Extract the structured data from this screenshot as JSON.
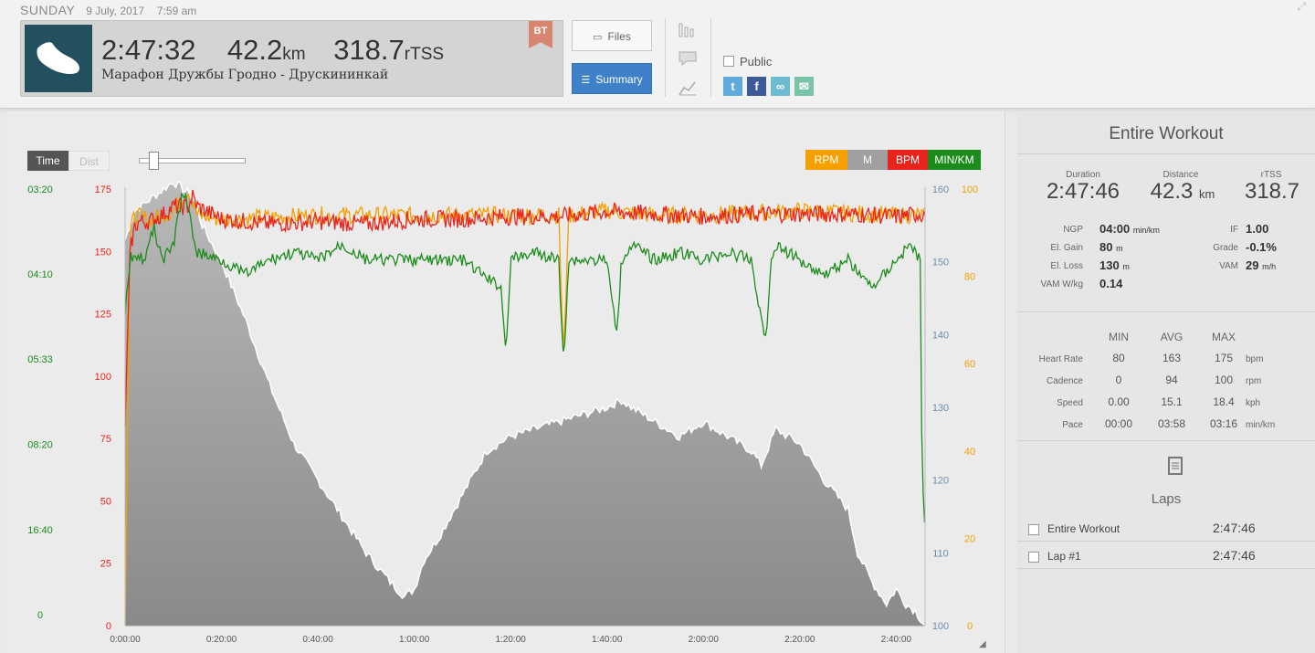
{
  "header": {
    "day": "SUNDAY",
    "date": "9 July, 2017",
    "time": "7:59 am",
    "duration": "2:47:32",
    "distance_value": "42.2",
    "distance_unit": "km",
    "tss_value": "318.7",
    "tss_unit": "rTSS",
    "workout_name": "Марафон Дружбы Гродно - Друскининкай",
    "badge": "BT"
  },
  "buttons": {
    "files": "Files",
    "summary": "Summary"
  },
  "public_label": "Public",
  "chart_toolbar": {
    "time": "Time",
    "dist": "Dist",
    "slider_level": 0.1
  },
  "legend": [
    {
      "label": "RPM",
      "color": "#f5a000"
    },
    {
      "label": "M",
      "color": "#a0a0a0"
    },
    {
      "label": "BPM",
      "color": "#e8241c"
    },
    {
      "label": "MIN/KM",
      "color": "#1b8c1b"
    }
  ],
  "chart_data": {
    "type": "line",
    "x_axis": {
      "unit": "elapsed time",
      "range": [
        "0:00:00",
        "2:46:00"
      ],
      "ticks": [
        "0:00:00",
        "0:20:00",
        "0:40:00",
        "1:00:00",
        "1:20:00",
        "1:40:00",
        "2:00:00",
        "2:20:00",
        "2:40:00"
      ]
    },
    "axes": {
      "bpm": {
        "color": "#e8241c",
        "range": [
          0,
          175
        ],
        "ticks": [
          "175",
          "150",
          "125",
          "100",
          "75",
          "50",
          "25",
          "0"
        ]
      },
      "pace": {
        "color": "#1b8c1b",
        "ticks": [
          "03:20",
          "04:10",
          "05:33",
          "08:20",
          "16:40",
          "0"
        ]
      },
      "elevation": {
        "color": "#6a8fb0",
        "range": [
          100,
          160
        ],
        "ticks": [
          "160",
          "150",
          "140",
          "130",
          "120",
          "110",
          "100"
        ]
      },
      "cadence": {
        "color": "#f5a000",
        "range": [
          0,
          100
        ],
        "ticks": [
          "100",
          "80",
          "60",
          "40",
          "20",
          "0"
        ]
      }
    },
    "series": [
      {
        "name": "BPM",
        "unit": "bpm",
        "x_min": [
          0,
          1,
          2,
          3,
          5,
          8,
          10,
          13,
          14,
          15,
          20,
          30,
          40,
          50,
          60,
          70,
          80,
          90,
          100,
          110,
          120,
          130,
          140,
          150,
          160,
          165,
          166
        ],
        "y": [
          80,
          150,
          160,
          162,
          162,
          165,
          168,
          168,
          172,
          168,
          163,
          161,
          162,
          161,
          163,
          163,
          164,
          164,
          166,
          165,
          164,
          165,
          165,
          165,
          164,
          165,
          165
        ]
      },
      {
        "name": "RPM",
        "unit": "rpm",
        "x_min": [
          0,
          1,
          2,
          5,
          10,
          13,
          15,
          20,
          40,
          60,
          80,
          90,
          91,
          92,
          100,
          110,
          120,
          140,
          160,
          166
        ],
        "y": [
          0,
          90,
          94,
          93,
          95,
          100,
          94,
          93,
          94,
          94,
          94,
          94,
          60,
          94,
          95,
          94,
          94,
          95,
          94,
          94
        ]
      },
      {
        "name": "MIN/KM",
        "unit": "min/km",
        "x_min": [
          0,
          1,
          2,
          4,
          6,
          8,
          10,
          12,
          13,
          15,
          20,
          25,
          30,
          35,
          40,
          45,
          50,
          60,
          70,
          78,
          79,
          80,
          85,
          90,
          91,
          92,
          100,
          102,
          103,
          105,
          110,
          115,
          120,
          125,
          130,
          133,
          134,
          135,
          140,
          145,
          150,
          155,
          160,
          163,
          165,
          166
        ],
        "y": [
          "04:40",
          "04:00",
          "03:55",
          "04:00",
          "03:40",
          "04:00",
          "03:50",
          "03:20",
          "03:30",
          "03:55",
          "04:00",
          "04:10",
          "04:00",
          "03:55",
          "04:00",
          "03:50",
          "04:00",
          "04:00",
          "04:00",
          "04:20",
          "05:20",
          "04:00",
          "03:55",
          "04:00",
          "05:30",
          "04:00",
          "04:00",
          "05:00",
          "04:00",
          "03:50",
          "04:00",
          "03:55",
          "04:00",
          "03:55",
          "04:00",
          "05:10",
          "04:00",
          "03:50",
          "04:00",
          "04:10",
          "04:00",
          "04:20",
          "04:00",
          "03:50",
          "04:00",
          "16:40"
        ]
      },
      {
        "name": "M",
        "unit": "m",
        "x_min": [
          0,
          1,
          2,
          4,
          6,
          8,
          10,
          12,
          14,
          16,
          20,
          25,
          30,
          35,
          40,
          45,
          50,
          55,
          58,
          60,
          62,
          65,
          70,
          75,
          80,
          85,
          90,
          95,
          100,
          103,
          105,
          110,
          115,
          120,
          125,
          130,
          132,
          135,
          140,
          145,
          150,
          152,
          155,
          158,
          160,
          162,
          164,
          166
        ],
        "y": [
          153,
          155,
          157,
          158,
          159,
          160,
          161,
          160,
          159,
          155,
          150,
          142,
          133,
          125,
          120,
          115,
          110,
          106,
          104,
          105,
          109,
          112,
          118,
          124,
          126,
          127,
          128,
          129,
          130,
          131,
          130,
          128,
          126,
          128,
          126,
          124,
          122,
          127,
          125,
          120,
          116,
          110,
          106,
          103,
          105,
          103,
          102,
          100
        ]
      }
    ]
  },
  "summary": {
    "title": "Entire Workout",
    "duration_label": "Duration",
    "duration": "2:47:46",
    "distance_label": "Distance",
    "distance": "42.3",
    "distance_unit": "km",
    "tss_label": "rTSS",
    "tss": "318.7",
    "ngp_label": "NGP",
    "ngp": "04:00",
    "ngp_unit": "min/km",
    "if_label": "IF",
    "if": "1.00",
    "gain_label": "El. Gain",
    "gain": "80",
    "gain_unit": "m",
    "grade_label": "Grade",
    "grade": "-0.1%",
    "loss_label": "El. Loss",
    "loss": "130",
    "loss_unit": "m",
    "vam_label": "VAM",
    "vam": "29",
    "vam_unit": "m/h",
    "vamwkg_label": "VAM W/kg",
    "vamwkg": "0.14"
  },
  "stats": {
    "headers": [
      "MIN",
      "AVG",
      "MAX"
    ],
    "rows": [
      {
        "label": "Heart Rate",
        "min": "80",
        "avg": "163",
        "max": "175",
        "unit": "bpm"
      },
      {
        "label": "Cadence",
        "min": "0",
        "avg": "94",
        "max": "100",
        "unit": "rpm"
      },
      {
        "label": "Speed",
        "min": "0.00",
        "avg": "15.1",
        "max": "18.4",
        "unit": "kph"
      },
      {
        "label": "Pace",
        "min": "00:00",
        "avg": "03:58",
        "max": "03:16",
        "unit": "min/km"
      }
    ]
  },
  "laps": {
    "title": "Laps",
    "items": [
      {
        "name": "Entire Workout",
        "time": "2:47:46"
      },
      {
        "name": "Lap #1",
        "time": "2:47:46"
      }
    ]
  }
}
